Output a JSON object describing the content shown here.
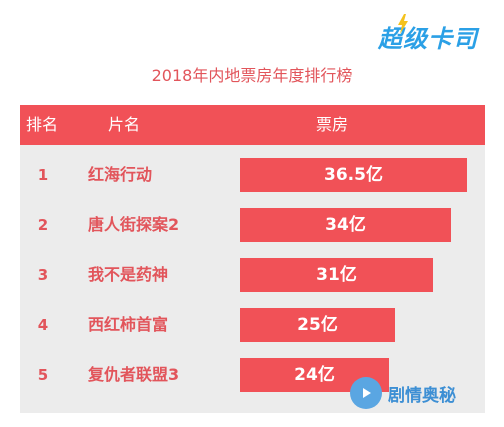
{
  "logo": {
    "text": "超级卡司"
  },
  "watermark": {
    "text": "剧情奥秘"
  },
  "chart_data": {
    "type": "table",
    "title": "2018年内地票房年度排行榜",
    "headers": [
      "排名",
      "片名",
      "票房"
    ],
    "unit": "亿",
    "rows": [
      {
        "rank": "1",
        "film": "红海行动",
        "box_office": 36.5,
        "label": "36.5亿"
      },
      {
        "rank": "2",
        "film": "唐人街探案2",
        "box_office": 34,
        "label": "34亿"
      },
      {
        "rank": "3",
        "film": "我不是药神",
        "box_office": 31,
        "label": "31亿"
      },
      {
        "rank": "4",
        "film": "西红柿首富",
        "box_office": 25,
        "label": "25亿"
      },
      {
        "rank": "5",
        "film": "复仇者联盟3",
        "box_office": 24,
        "label": "24亿"
      }
    ],
    "colors": {
      "accent": "#f15157",
      "text": "#e2555b",
      "row_bg": "#ececec",
      "logo": "#2ba0e6"
    }
  }
}
